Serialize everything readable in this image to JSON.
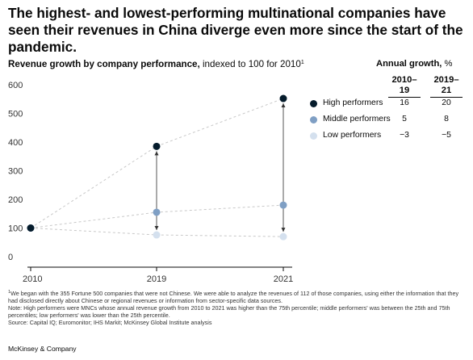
{
  "headline": "The highest- and lowest-performing multinational companies have seen their revenues in China diverge even more since the start of the pandemic.",
  "chart_data": {
    "type": "line",
    "title": "Revenue growth by company performance,",
    "title_suffix": "indexed to 100 for 2010",
    "title_footnote": "1",
    "x": [
      "2010",
      "2019",
      "2021"
    ],
    "ylim": [
      0,
      600
    ],
    "yticks": [
      0,
      100,
      200,
      300,
      400,
      500,
      600
    ],
    "grid": false,
    "legend_position": "right",
    "series": [
      {
        "name": "High performers",
        "color": "#051c2c",
        "values": [
          100,
          385,
          552
        ]
      },
      {
        "name": "Middle performers",
        "color": "#7f9fc4",
        "values": [
          100,
          155,
          180
        ]
      },
      {
        "name": "Low performers",
        "color": "#d4e0ee",
        "values": [
          100,
          76,
          70
        ]
      }
    ]
  },
  "growth_table": {
    "title": "Annual growth,",
    "unit": "%",
    "col1": [
      "2010–",
      "19"
    ],
    "col2": [
      "2019–",
      "21"
    ],
    "rows": [
      {
        "label": "High performers",
        "v1": "16",
        "v2": "20"
      },
      {
        "label": "Middle performers",
        "v1": "5",
        "v2": "8"
      },
      {
        "label": "Low performers",
        "v1": "−3",
        "v2": "−5"
      }
    ]
  },
  "footnotes": {
    "mark": "1",
    "line1": "We began with the 355 Fortune 500 companies that were not Chinese. We were able to analyze the revenues of 112 of those companies, using either the information that they had disclosed directly about Chinese or regional revenues or information from sector-specific data sources.",
    "line2": "Note: High performers were MNCs whose annual revenue growth from 2010 to 2021 was higher than the 75th percentile; middle performers' was between the 25th and 75th percentiles; low performers' was lower than the 25th percentile.",
    "line3": "Source: Capital IQ; Euromonitor; IHS Markit; McKinsey Global Institute analysis"
  },
  "brand": "McKinsey & Company"
}
